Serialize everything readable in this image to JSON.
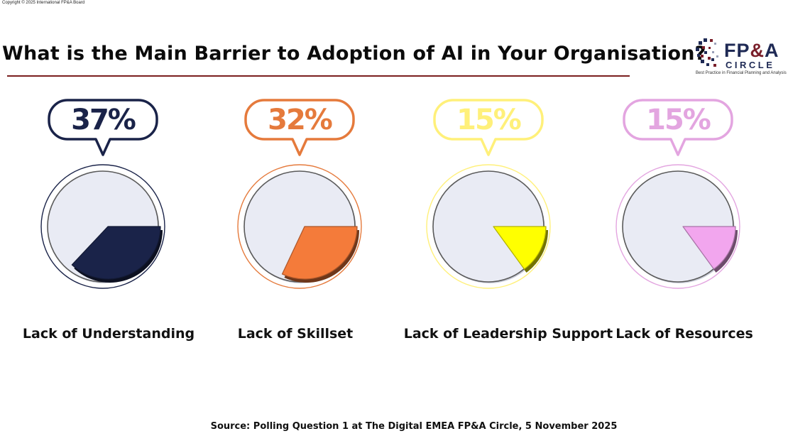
{
  "copyright": "Copyright © 2025 International FP&A Board",
  "logo": {
    "name_part1": "FP",
    "name_amp": "&",
    "name_part2": "A",
    "subtitle": "CIRCLE",
    "tagline": "Best Practice in Financial Planning and Analysis"
  },
  "source": "Source: Polling Question 1 at The Digital EMEA FP&A Circle, 5 November 2025",
  "chart_data": {
    "type": "pie",
    "title": "What is the Main Barrier to Adoption of AI in Your Organisation?",
    "categories": [
      "Lack of Understanding",
      "Lack of Skillset",
      "Lack of Leadership Support",
      "Lack of Resources"
    ],
    "values": [
      37,
      32,
      15,
      15
    ],
    "value_labels": [
      "37%",
      "32%",
      "15%",
      "15%"
    ],
    "colors": [
      "#1a2349",
      "#f47b3a",
      "#ffff00",
      "#f2a6ee"
    ],
    "outline_colors": [
      "#1a2349",
      "#e57a3c",
      "#fff07a",
      "#e3a5e0"
    ],
    "remainder_color": "#e9ebf4"
  }
}
